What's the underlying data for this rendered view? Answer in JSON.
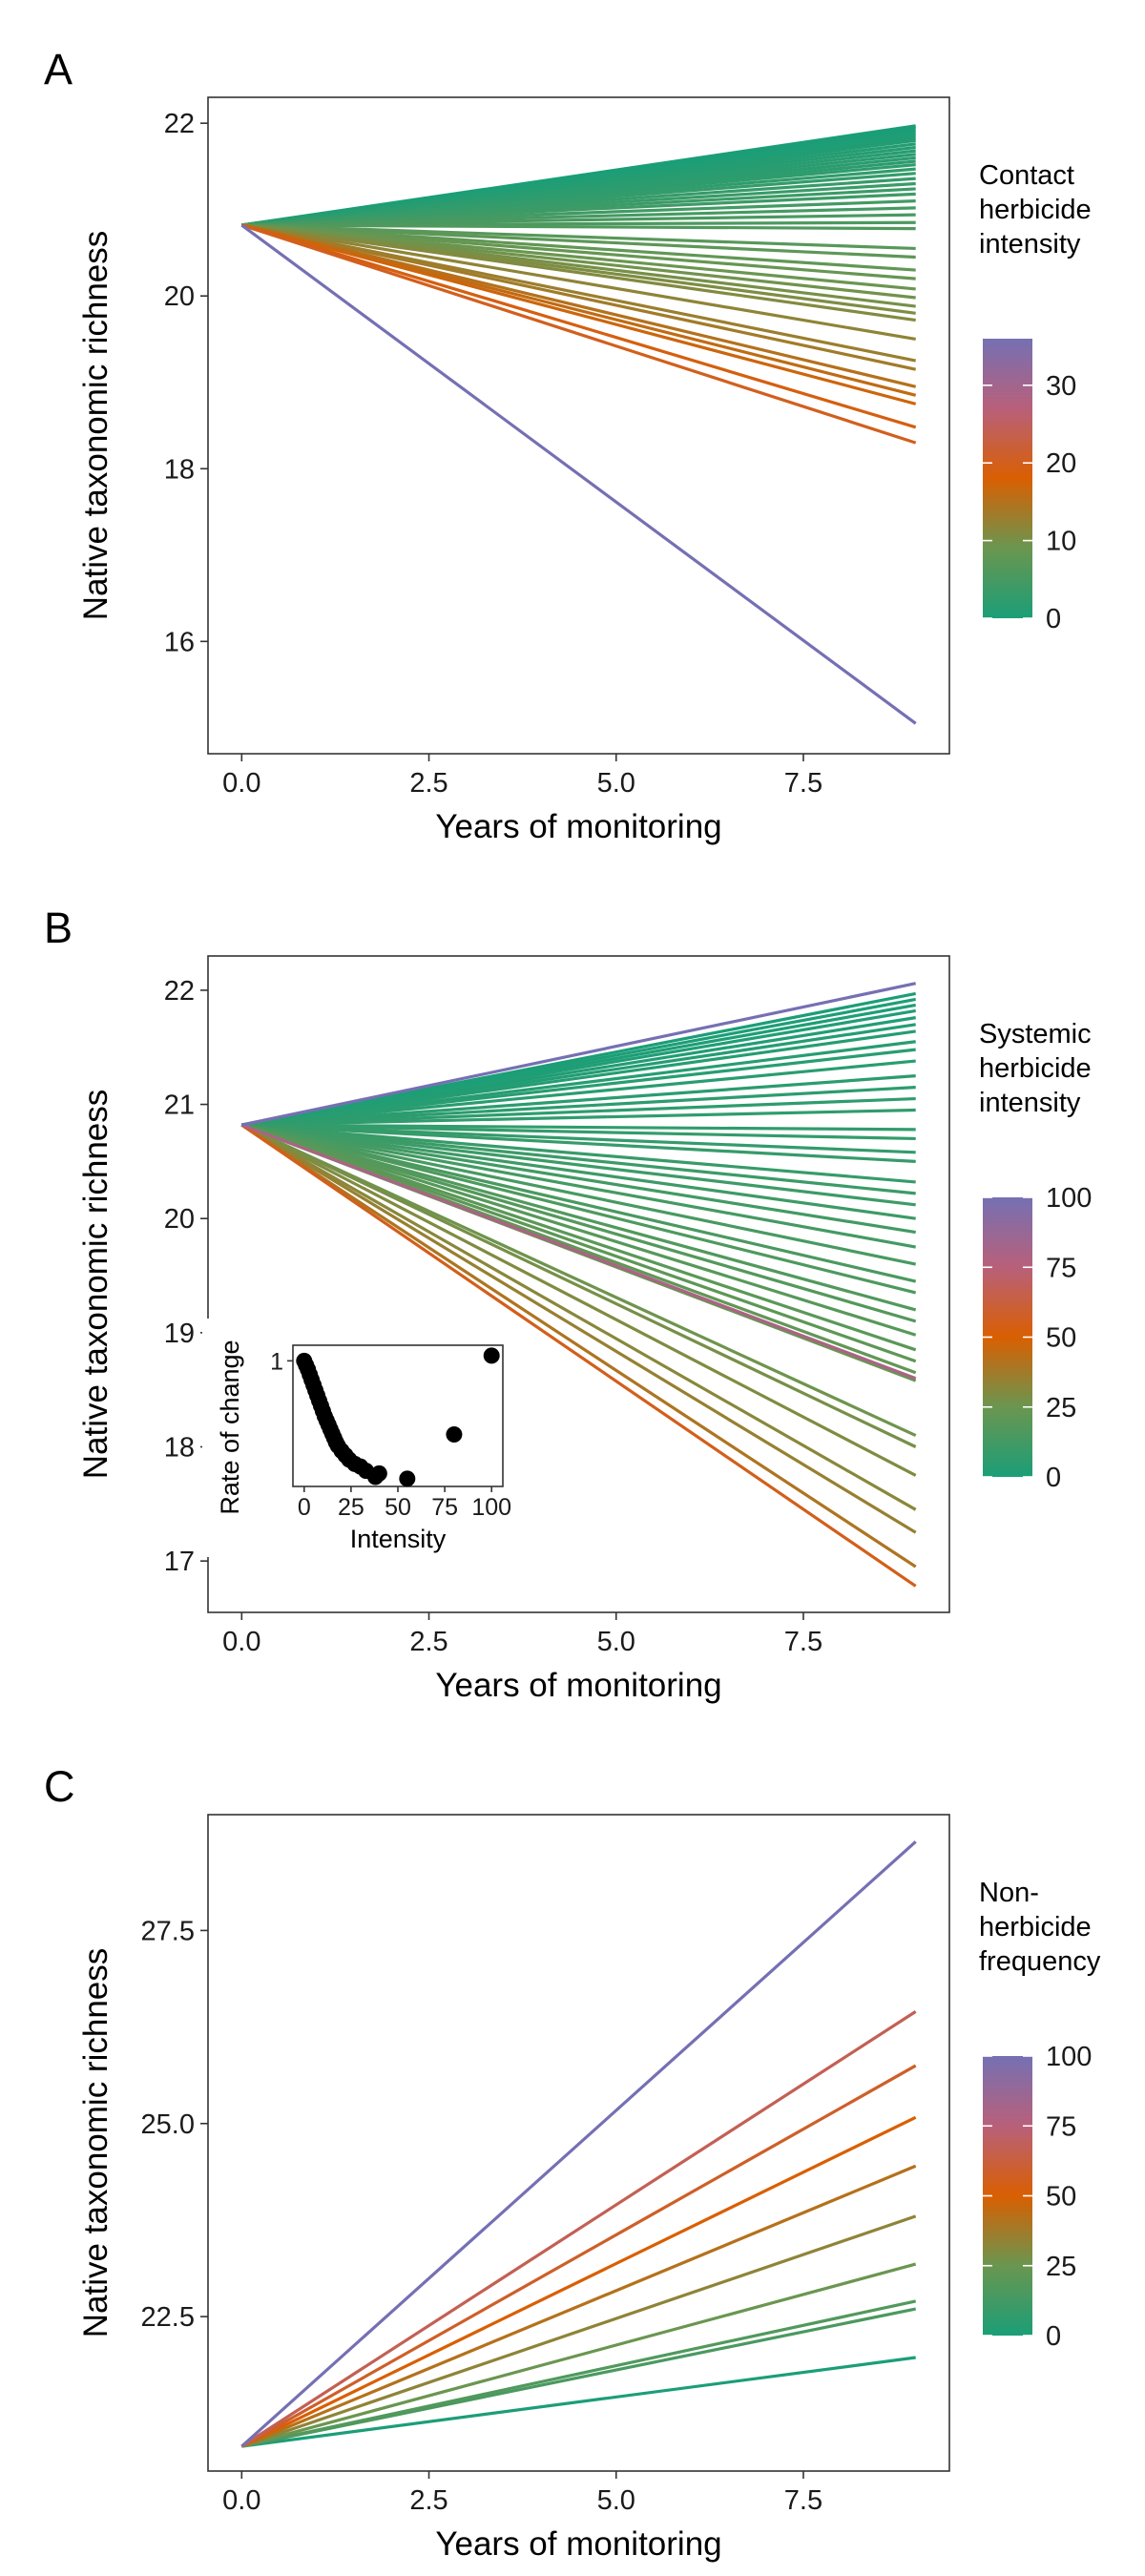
{
  "chart_data": [
    {
      "panel": "A",
      "type": "line",
      "xlabel": "Years of monitoring",
      "ylabel": "Native taxonomic richness",
      "xlim": [
        -0.45,
        9.45
      ],
      "ylim": [
        14.7,
        22.3
      ],
      "xticks": [
        0.0,
        2.5,
        5.0,
        7.5
      ],
      "xtick_labels": [
        "0.0",
        "2.5",
        "5.0",
        "7.5"
      ],
      "yticks": [
        16,
        18,
        20,
        22
      ],
      "ytick_labels": [
        "16",
        "18",
        "20",
        "22"
      ],
      "x_start": 0,
      "x_end": 9,
      "y_start": 20.82,
      "legend": {
        "title": [
          "Contact",
          "herbicide",
          "intensity"
        ],
        "min": 0,
        "max": 36,
        "ticks": [
          0,
          10,
          20,
          30
        ],
        "tick_labels": [
          "0",
          "10",
          "20",
          "30"
        ],
        "colors": [
          "#1b9e77",
          "#6a9650",
          "#d95f02",
          "#b8607a",
          "#7570b3"
        ]
      },
      "series": [
        {
          "intensity": 0,
          "end": 21.97
        },
        {
          "intensity": 0,
          "end": 21.95
        },
        {
          "intensity": 0,
          "end": 21.92
        },
        {
          "intensity": 0.3,
          "end": 21.89
        },
        {
          "intensity": 0.5,
          "end": 21.86
        },
        {
          "intensity": 0.7,
          "end": 21.83
        },
        {
          "intensity": 0.9,
          "end": 21.8
        },
        {
          "intensity": 1.1,
          "end": 21.76
        },
        {
          "intensity": 1.3,
          "end": 21.72
        },
        {
          "intensity": 1.5,
          "end": 21.68
        },
        {
          "intensity": 1.7,
          "end": 21.64
        },
        {
          "intensity": 1.9,
          "end": 21.6
        },
        {
          "intensity": 2.1,
          "end": 21.56
        },
        {
          "intensity": 2.3,
          "end": 21.52
        },
        {
          "intensity": 2.5,
          "end": 21.47
        },
        {
          "intensity": 2.8,
          "end": 21.42
        },
        {
          "intensity": 3.1,
          "end": 21.36
        },
        {
          "intensity": 3.4,
          "end": 21.3
        },
        {
          "intensity": 3.7,
          "end": 21.24
        },
        {
          "intensity": 4.0,
          "end": 21.18
        },
        {
          "intensity": 4.4,
          "end": 21.1
        },
        {
          "intensity": 4.8,
          "end": 21.02
        },
        {
          "intensity": 5.2,
          "end": 20.94
        },
        {
          "intensity": 5.6,
          "end": 20.85
        },
        {
          "intensity": 6.0,
          "end": 20.78
        },
        {
          "intensity": 7.0,
          "end": 20.55
        },
        {
          "intensity": 7.5,
          "end": 20.45
        },
        {
          "intensity": 8.0,
          "end": 20.3
        },
        {
          "intensity": 8.5,
          "end": 20.2
        },
        {
          "intensity": 9.0,
          "end": 20.08
        },
        {
          "intensity": 9.5,
          "end": 19.98
        },
        {
          "intensity": 10.0,
          "end": 19.88
        },
        {
          "intensity": 10.5,
          "end": 19.8
        },
        {
          "intensity": 11.0,
          "end": 19.72
        },
        {
          "intensity": 12.0,
          "end": 19.5
        },
        {
          "intensity": 13.0,
          "end": 19.25
        },
        {
          "intensity": 13.5,
          "end": 19.15
        },
        {
          "intensity": 15.0,
          "end": 18.95
        },
        {
          "intensity": 16.0,
          "end": 18.85
        },
        {
          "intensity": 17.0,
          "end": 18.75
        },
        {
          "intensity": 19.0,
          "end": 18.48
        },
        {
          "intensity": 20.0,
          "end": 18.3
        },
        {
          "intensity": 36.0,
          "end": 15.05
        }
      ]
    },
    {
      "panel": "B",
      "type": "line",
      "xlabel": "Years of monitoring",
      "ylabel": "Native taxonomic richness",
      "xlim": [
        -0.45,
        9.45
      ],
      "ylim": [
        16.55,
        22.3
      ],
      "xticks": [
        0.0,
        2.5,
        5.0,
        7.5
      ],
      "xtick_labels": [
        "0.0",
        "2.5",
        "5.0",
        "7.5"
      ],
      "yticks": [
        17,
        18,
        19,
        20,
        21,
        22
      ],
      "ytick_labels": [
        "17",
        "18",
        "19",
        "20",
        "21",
        "22"
      ],
      "x_start": 0,
      "x_end": 9,
      "y_start": 20.82,
      "legend": {
        "title": [
          "Systemic",
          "herbicide",
          "intensity"
        ],
        "min": 0,
        "max": 100,
        "ticks": [
          0,
          25,
          50,
          75,
          100
        ],
        "tick_labels": [
          "0",
          "25",
          "50",
          "75",
          "100"
        ],
        "colors": [
          "#1b9e77",
          "#6a9650",
          "#d95f02",
          "#b8607a",
          "#7570b3"
        ]
      },
      "series": [
        {
          "intensity": 0,
          "end": 21.97
        },
        {
          "intensity": 0.5,
          "end": 21.92
        },
        {
          "intensity": 1,
          "end": 21.87
        },
        {
          "intensity": 1.5,
          "end": 21.82
        },
        {
          "intensity": 2,
          "end": 21.76
        },
        {
          "intensity": 2.5,
          "end": 21.7
        },
        {
          "intensity": 3,
          "end": 21.64
        },
        {
          "intensity": 3.5,
          "end": 21.55
        },
        {
          "intensity": 4,
          "end": 21.48
        },
        {
          "intensity": 4.5,
          "end": 21.38
        },
        {
          "intensity": 5,
          "end": 21.25
        },
        {
          "intensity": 5.5,
          "end": 21.15
        },
        {
          "intensity": 6,
          "end": 21.05
        },
        {
          "intensity": 6.5,
          "end": 20.95
        },
        {
          "intensity": 7,
          "end": 20.78
        },
        {
          "intensity": 7.5,
          "end": 20.7
        },
        {
          "intensity": 8,
          "end": 20.58
        },
        {
          "intensity": 8.5,
          "end": 20.5
        },
        {
          "intensity": 9,
          "end": 20.32
        },
        {
          "intensity": 10,
          "end": 20.22
        },
        {
          "intensity": 10.5,
          "end": 20.12
        },
        {
          "intensity": 11,
          "end": 20.0
        },
        {
          "intensity": 12,
          "end": 19.88
        },
        {
          "intensity": 13,
          "end": 19.75
        },
        {
          "intensity": 14,
          "end": 19.6
        },
        {
          "intensity": 15,
          "end": 19.45
        },
        {
          "intensity": 16,
          "end": 19.35
        },
        {
          "intensity": 17,
          "end": 19.2
        },
        {
          "intensity": 18,
          "end": 19.1
        },
        {
          "intensity": 19,
          "end": 18.98
        },
        {
          "intensity": 20,
          "end": 18.85
        },
        {
          "intensity": 21,
          "end": 18.75
        },
        {
          "intensity": 22,
          "end": 18.65
        },
        {
          "intensity": 24,
          "end": 18.58
        },
        {
          "intensity": 26,
          "end": 18.1
        },
        {
          "intensity": 28,
          "end": 18.0
        },
        {
          "intensity": 30,
          "end": 17.75
        },
        {
          "intensity": 32,
          "end": 17.45
        },
        {
          "intensity": 35,
          "end": 17.25
        },
        {
          "intensity": 40,
          "end": 16.95
        },
        {
          "intensity": 55,
          "end": 16.78
        },
        {
          "intensity": 80,
          "end": 18.6
        },
        {
          "intensity": 100,
          "end": 22.06
        }
      ],
      "inset": {
        "type": "scatter",
        "xlabel": "Intensity",
        "ylabel": "Rate of change",
        "xlim": [
          -6,
          106
        ],
        "ylim": [
          0.855,
          1.018
        ],
        "xticks": [
          0,
          25,
          50,
          75,
          100
        ],
        "xtick_labels": [
          "0",
          "25",
          "50",
          "75",
          "100"
        ],
        "yticks": [
          1
        ],
        "ytick_labels": [
          "1"
        ],
        "points": [
          [
            0,
            1.0
          ],
          [
            1,
            0.995
          ],
          [
            2,
            0.99
          ],
          [
            3,
            0.984
          ],
          [
            4,
            0.978
          ],
          [
            5,
            0.972
          ],
          [
            6,
            0.966
          ],
          [
            7,
            0.96
          ],
          [
            8,
            0.954
          ],
          [
            9,
            0.948
          ],
          [
            10,
            0.942
          ],
          [
            11,
            0.936
          ],
          [
            12,
            0.931
          ],
          [
            13,
            0.926
          ],
          [
            14,
            0.921
          ],
          [
            15,
            0.916
          ],
          [
            16,
            0.911
          ],
          [
            17,
            0.906
          ],
          [
            18,
            0.902
          ],
          [
            20,
            0.896
          ],
          [
            22,
            0.891
          ],
          [
            24,
            0.886
          ],
          [
            27,
            0.881
          ],
          [
            30,
            0.878
          ],
          [
            33,
            0.873
          ],
          [
            38,
            0.866
          ],
          [
            40,
            0.87
          ],
          [
            55,
            0.864
          ],
          [
            80,
            0.915
          ],
          [
            100,
            1.006
          ]
        ]
      }
    },
    {
      "panel": "C",
      "type": "line",
      "xlabel": "Years of monitoring",
      "ylabel": "Native taxonomic richness",
      "xlim": [
        -0.45,
        9.45
      ],
      "ylim": [
        20.5,
        29.0
      ],
      "xticks": [
        0.0,
        2.5,
        5.0,
        7.5
      ],
      "xtick_labels": [
        "0.0",
        "2.5",
        "5.0",
        "7.5"
      ],
      "yticks": [
        22.5,
        25.0,
        27.5
      ],
      "ytick_labels": [
        "22.5",
        "25.0",
        "27.5"
      ],
      "x_start": 0,
      "x_end": 9,
      "y_start": 20.82,
      "legend": {
        "title": [
          "Non-",
          "herbicide",
          "frequency"
        ],
        "min": 0,
        "max": 100,
        "ticks": [
          0,
          25,
          50,
          75,
          100
        ],
        "tick_labels": [
          "0",
          "25",
          "50",
          "75",
          "100"
        ],
        "colors": [
          "#1b9e77",
          "#6a9650",
          "#d95f02",
          "#b8607a",
          "#7570b3"
        ]
      },
      "series": [
        {
          "intensity": 0,
          "end": 21.97
        },
        {
          "intensity": 15,
          "end": 22.6
        },
        {
          "intensity": 17,
          "end": 22.7
        },
        {
          "intensity": 25,
          "end": 23.18
        },
        {
          "intensity": 33,
          "end": 23.8
        },
        {
          "intensity": 42,
          "end": 24.45
        },
        {
          "intensity": 50,
          "end": 25.08
        },
        {
          "intensity": 58,
          "end": 25.75
        },
        {
          "intensity": 67,
          "end": 26.45
        },
        {
          "intensity": 100,
          "end": 28.65
        }
      ]
    }
  ]
}
